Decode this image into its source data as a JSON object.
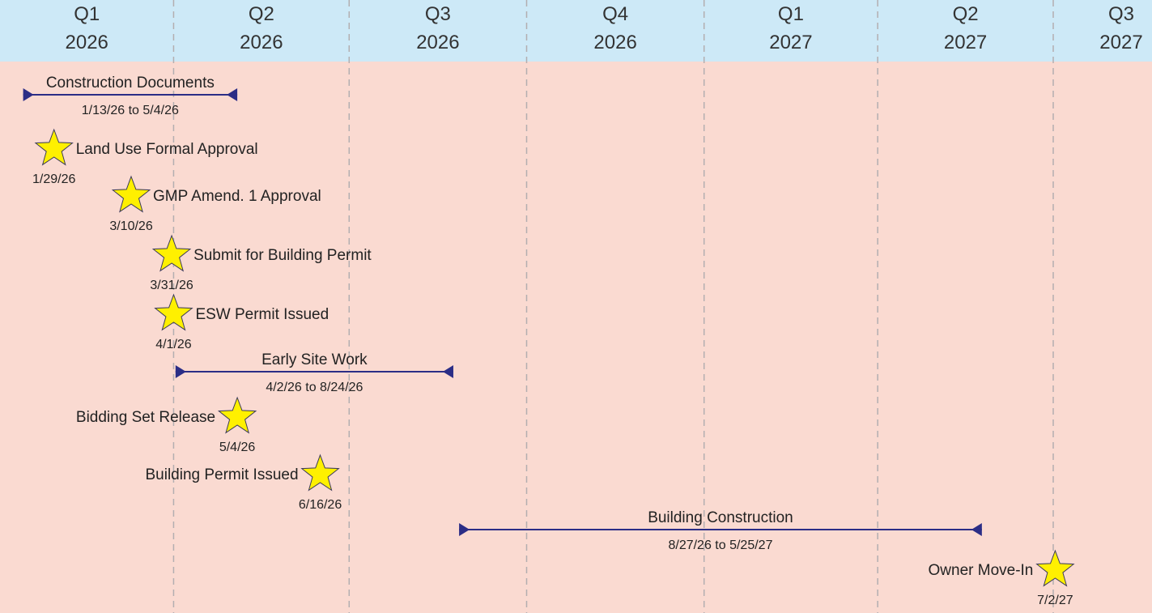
{
  "colors": {
    "header": "#cde9f7",
    "body": "#fadad1",
    "grid": "#b3aeb0",
    "task": "#2b2d86",
    "star_fill": "#fff000",
    "star_stroke": "#3a3a5a",
    "text": "#222222"
  },
  "chart_data": {
    "type": "timeline",
    "title": "",
    "x_axis": {
      "type": "date",
      "range": [
        "2026-01-01",
        "2027-07-01"
      ],
      "grid": "dashed, at quarter boundaries",
      "quarters": [
        {
          "q": "Q1",
          "year": "2026",
          "start": "2026-01-01"
        },
        {
          "q": "Q2",
          "year": "2026",
          "start": "2026-04-01"
        },
        {
          "q": "Q3",
          "year": "2026",
          "start": "2026-07-01"
        },
        {
          "q": "Q4",
          "year": "2026",
          "start": "2026-10-01"
        },
        {
          "q": "Q1",
          "year": "2027",
          "start": "2027-01-01"
        },
        {
          "q": "Q2",
          "year": "2027",
          "start": "2027-04-01"
        },
        {
          "q": "Q3",
          "year": "2027",
          "start": "2027-07-01"
        }
      ]
    },
    "tasks": [
      {
        "name": "Construction Documents",
        "start": "2026-01-13",
        "end": "2026-05-04",
        "label": "1/13/26 to 5/4/26"
      },
      {
        "name": "Early Site Work",
        "start": "2026-04-02",
        "end": "2026-08-24",
        "label": "4/2/26 to 8/24/26"
      },
      {
        "name": "Building Construction",
        "start": "2026-08-27",
        "end": "2027-05-25",
        "label": "8/27/26 to 5/25/27"
      }
    ],
    "milestones": [
      {
        "name": "Land Use Formal Approval",
        "date": "2026-01-29",
        "label": "1/29/26",
        "name_side": "right"
      },
      {
        "name": "GMP Amend. 1 Approval",
        "date": "2026-03-10",
        "label": "3/10/26",
        "name_side": "right"
      },
      {
        "name": "Submit for Building Permit",
        "date": "2026-03-31",
        "label": "3/31/26",
        "name_side": "right"
      },
      {
        "name": "ESW Permit Issued",
        "date": "2026-04-01",
        "label": "4/1/26",
        "name_side": "right"
      },
      {
        "name": "Bidding Set Release",
        "date": "2026-05-04",
        "label": "5/4/26",
        "name_side": "left"
      },
      {
        "name": "Building Permit Issued",
        "date": "2026-06-16",
        "label": "6/16/26",
        "name_side": "left"
      },
      {
        "name": "Owner Move-In",
        "date": "2027-07-02",
        "label": "7/2/27",
        "name_side": "left"
      }
    ]
  }
}
